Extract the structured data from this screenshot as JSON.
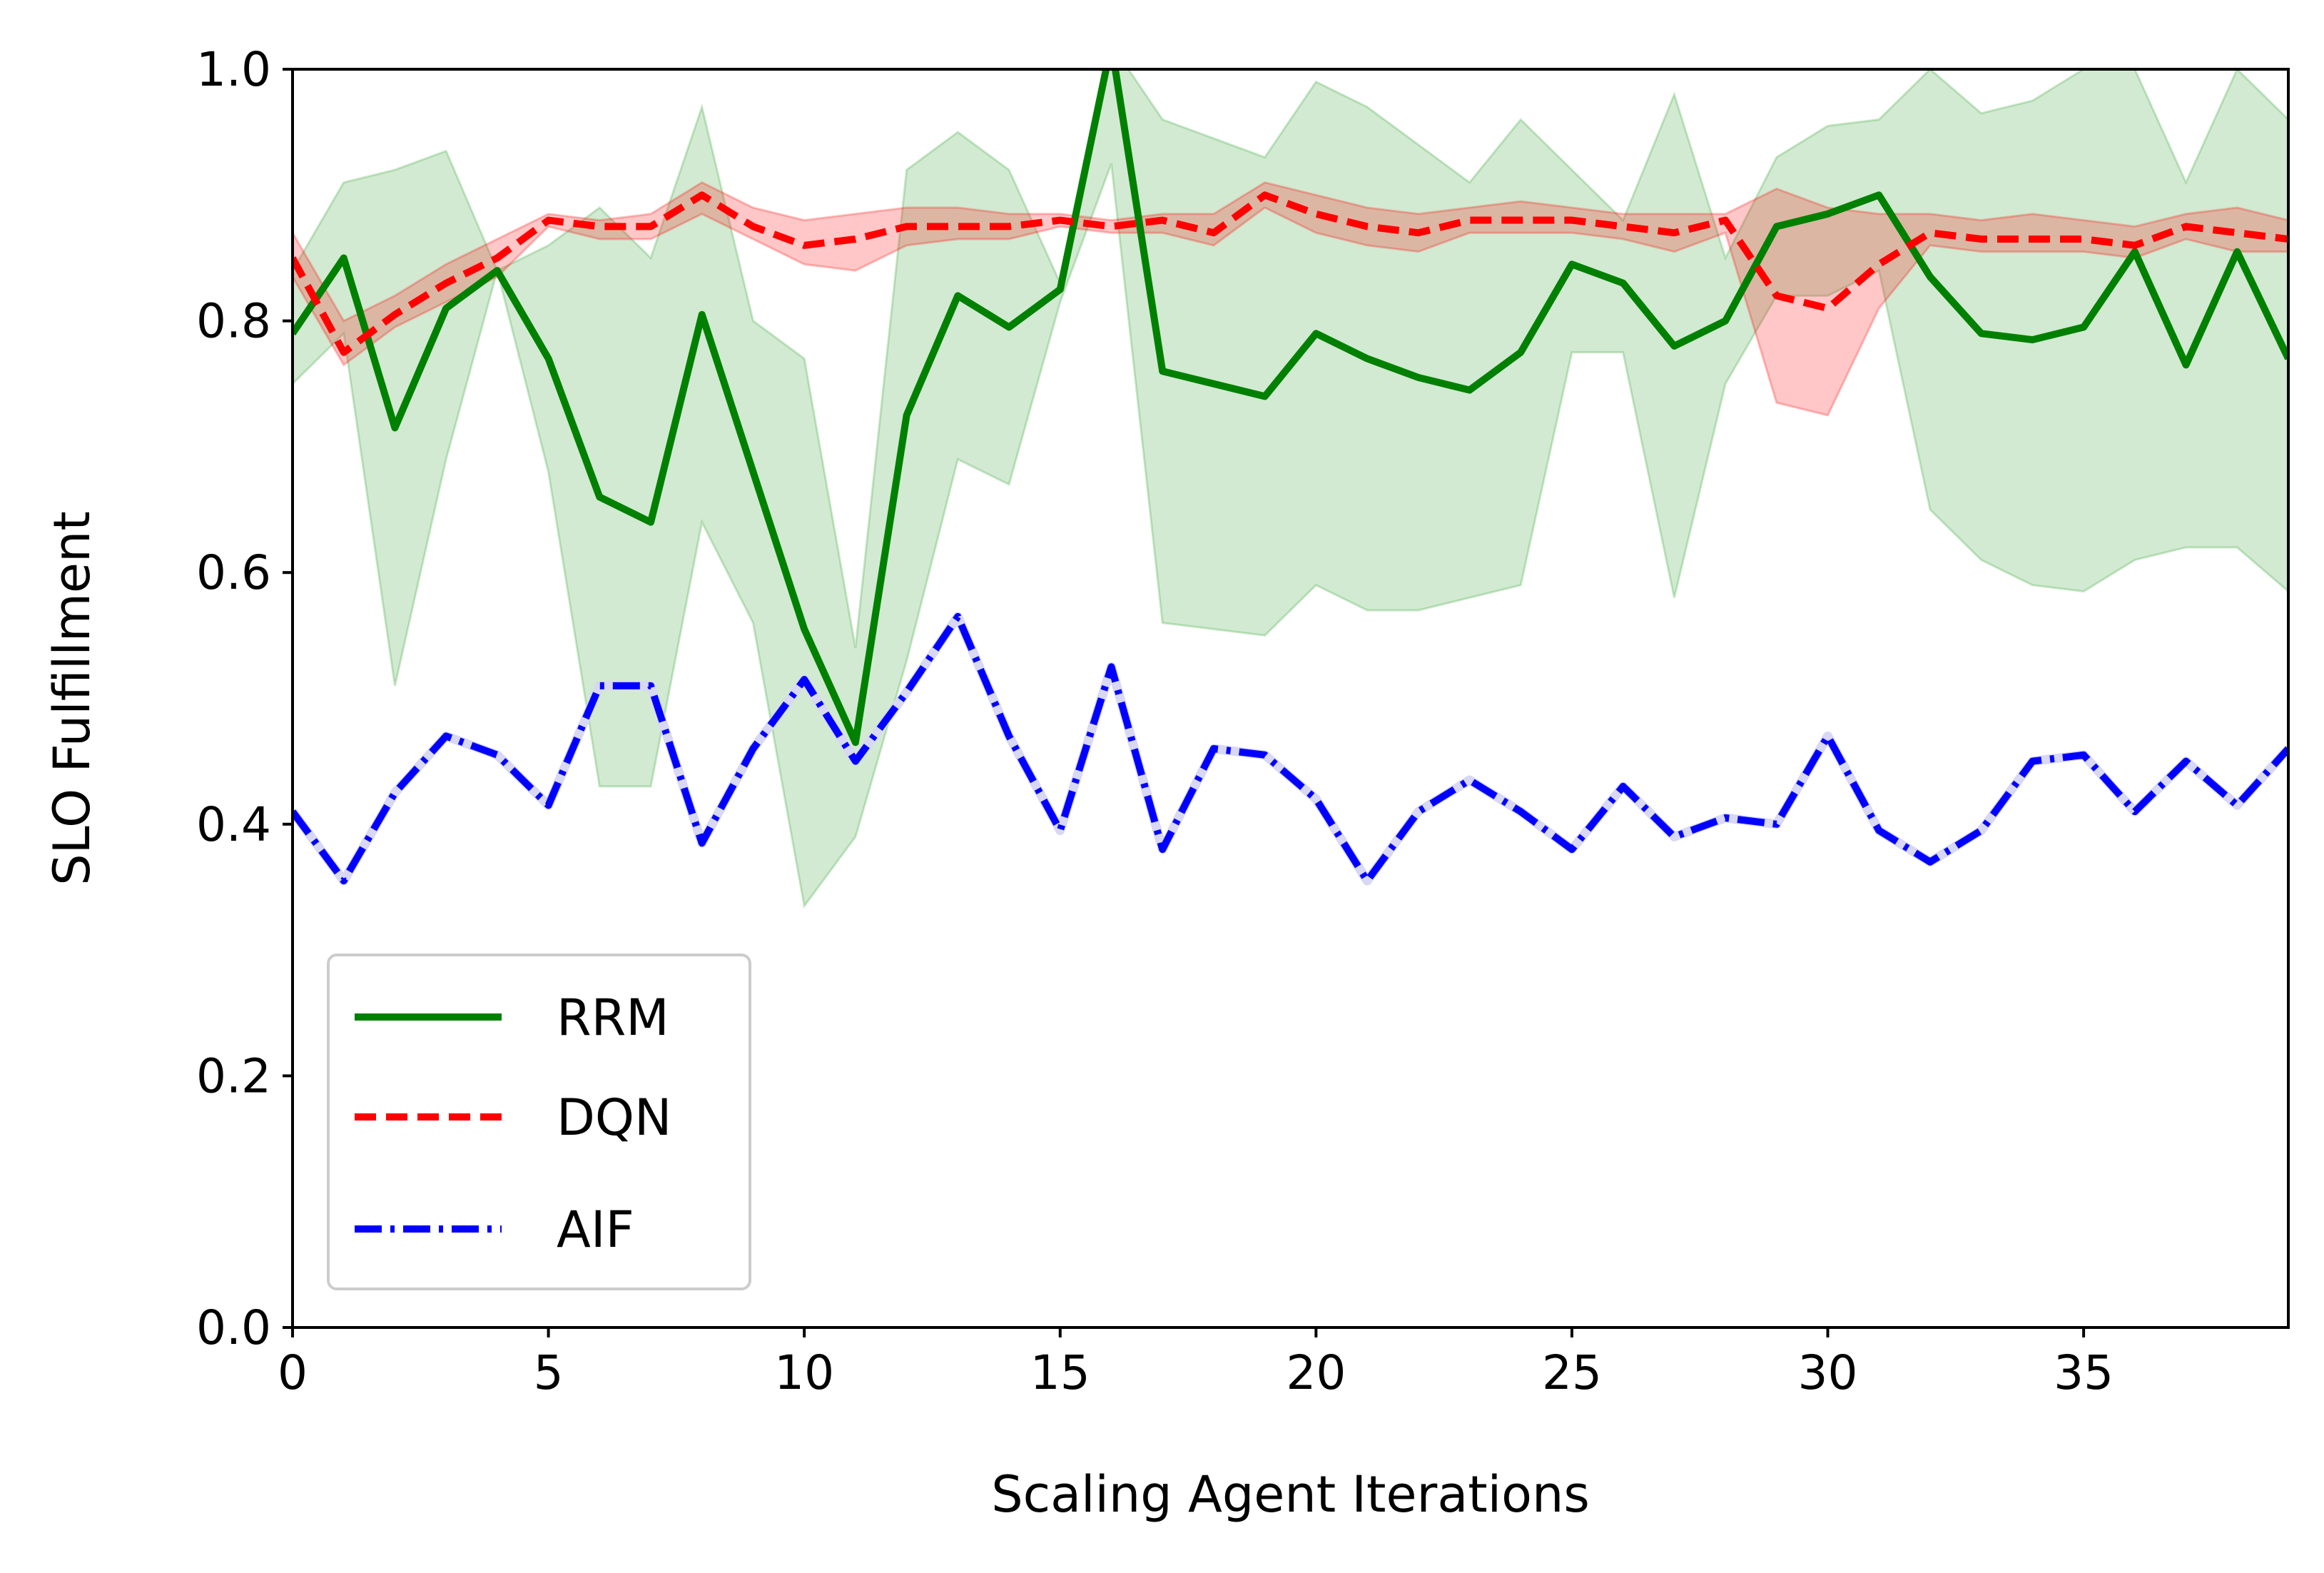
{
  "chart_data": {
    "type": "line",
    "title": "",
    "xlabel": "Scaling Agent Iterations",
    "ylabel": "SLO Fulfillment",
    "xlim": [
      0,
      39
    ],
    "ylim": [
      0.0,
      1.0
    ],
    "xticks": [
      "0",
      "5",
      "10",
      "15",
      "20",
      "25",
      "30",
      "35"
    ],
    "xtick_values": [
      0,
      5,
      10,
      15,
      20,
      25,
      30,
      35
    ],
    "yticks": [
      "0.0",
      "0.2",
      "0.4",
      "0.6",
      "0.8",
      "1.0"
    ],
    "ytick_values": [
      0.0,
      0.2,
      0.4,
      0.6,
      0.8,
      1.0
    ],
    "grid": false,
    "legend_position": "lower-left",
    "x": [
      0,
      1,
      2,
      3,
      4,
      5,
      6,
      7,
      8,
      9,
      10,
      11,
      12,
      13,
      14,
      15,
      16,
      17,
      18,
      19,
      20,
      21,
      22,
      23,
      24,
      25,
      26,
      27,
      28,
      29,
      30,
      31,
      32,
      33,
      34,
      35,
      36,
      37,
      38,
      39
    ],
    "series": [
      {
        "name": "RRM",
        "color": "#008000",
        "line_style": "solid",
        "values": [
          0.79,
          0.85,
          0.715,
          0.81,
          0.84,
          0.77,
          0.66,
          0.64,
          0.805,
          0.68,
          0.555,
          0.465,
          0.725,
          0.82,
          0.795,
          0.825,
          1.02,
          0.76,
          0.75,
          0.74,
          0.79,
          0.77,
          0.755,
          0.745,
          0.775,
          0.845,
          0.83,
          0.78,
          0.8,
          0.875,
          0.885,
          0.9,
          0.835,
          0.79,
          0.785,
          0.795,
          0.855,
          0.765,
          0.855,
          0.77
        ],
        "band_upper": [
          0.84,
          0.91,
          0.92,
          0.935,
          0.84,
          0.86,
          0.89,
          0.85,
          0.97,
          0.8,
          0.77,
          0.54,
          0.92,
          0.95,
          0.92,
          0.83,
          1.02,
          0.96,
          0.945,
          0.93,
          0.99,
          0.97,
          0.94,
          0.91,
          0.96,
          0.92,
          0.88,
          0.98,
          0.85,
          0.93,
          0.955,
          0.96,
          1.0,
          0.965,
          0.975,
          1.0,
          1.0,
          0.91,
          1.0,
          0.96
        ],
        "band_lower": [
          0.75,
          0.79,
          0.51,
          0.69,
          0.84,
          0.68,
          0.43,
          0.43,
          0.64,
          0.56,
          0.335,
          0.39,
          0.53,
          0.69,
          0.67,
          0.815,
          0.925,
          0.56,
          0.555,
          0.55,
          0.59,
          0.57,
          0.57,
          0.58,
          0.59,
          0.775,
          0.775,
          0.58,
          0.75,
          0.82,
          0.82,
          0.84,
          0.65,
          0.61,
          0.59,
          0.585,
          0.61,
          0.62,
          0.62,
          0.585
        ],
        "band_color": "#2ca02c"
      },
      {
        "name": "DQN",
        "color": "#ff0000",
        "line_style": "dashed",
        "values": [
          0.85,
          0.775,
          0.805,
          0.83,
          0.85,
          0.88,
          0.875,
          0.875,
          0.9,
          0.875,
          0.86,
          0.865,
          0.875,
          0.875,
          0.875,
          0.88,
          0.875,
          0.88,
          0.87,
          0.9,
          0.885,
          0.875,
          0.87,
          0.88,
          0.88,
          0.88,
          0.875,
          0.87,
          0.88,
          0.82,
          0.81,
          0.845,
          0.87,
          0.865,
          0.865,
          0.865,
          0.86,
          0.875,
          0.87,
          0.865
        ],
        "band_upper": [
          0.87,
          0.8,
          0.82,
          0.845,
          0.865,
          0.885,
          0.88,
          0.885,
          0.91,
          0.89,
          0.88,
          0.885,
          0.89,
          0.89,
          0.885,
          0.885,
          0.88,
          0.885,
          0.885,
          0.91,
          0.9,
          0.89,
          0.885,
          0.89,
          0.895,
          0.89,
          0.885,
          0.885,
          0.885,
          0.905,
          0.89,
          0.885,
          0.885,
          0.88,
          0.885,
          0.88,
          0.875,
          0.885,
          0.89,
          0.88
        ],
        "band_lower": [
          0.835,
          0.765,
          0.795,
          0.815,
          0.835,
          0.875,
          0.865,
          0.865,
          0.885,
          0.865,
          0.845,
          0.84,
          0.86,
          0.865,
          0.865,
          0.875,
          0.87,
          0.87,
          0.86,
          0.89,
          0.87,
          0.86,
          0.855,
          0.87,
          0.87,
          0.87,
          0.865,
          0.855,
          0.87,
          0.735,
          0.725,
          0.81,
          0.86,
          0.855,
          0.855,
          0.855,
          0.85,
          0.865,
          0.855,
          0.855
        ],
        "band_color": "#ff0000"
      },
      {
        "name": "AIF",
        "color": "#0000ff",
        "line_style": "dashdot",
        "values": [
          0.41,
          0.355,
          0.425,
          0.47,
          0.455,
          0.415,
          0.51,
          0.51,
          0.385,
          0.46,
          0.515,
          0.45,
          0.505,
          0.565,
          0.47,
          0.395,
          0.525,
          0.38,
          0.46,
          0.455,
          0.42,
          0.355,
          0.41,
          0.435,
          0.41,
          0.38,
          0.43,
          0.39,
          0.405,
          0.4,
          0.47,
          0.395,
          0.37,
          0.395,
          0.45,
          0.455,
          0.41,
          0.45,
          0.415,
          0.46
        ],
        "band_color": "#0000ff"
      }
    ]
  }
}
